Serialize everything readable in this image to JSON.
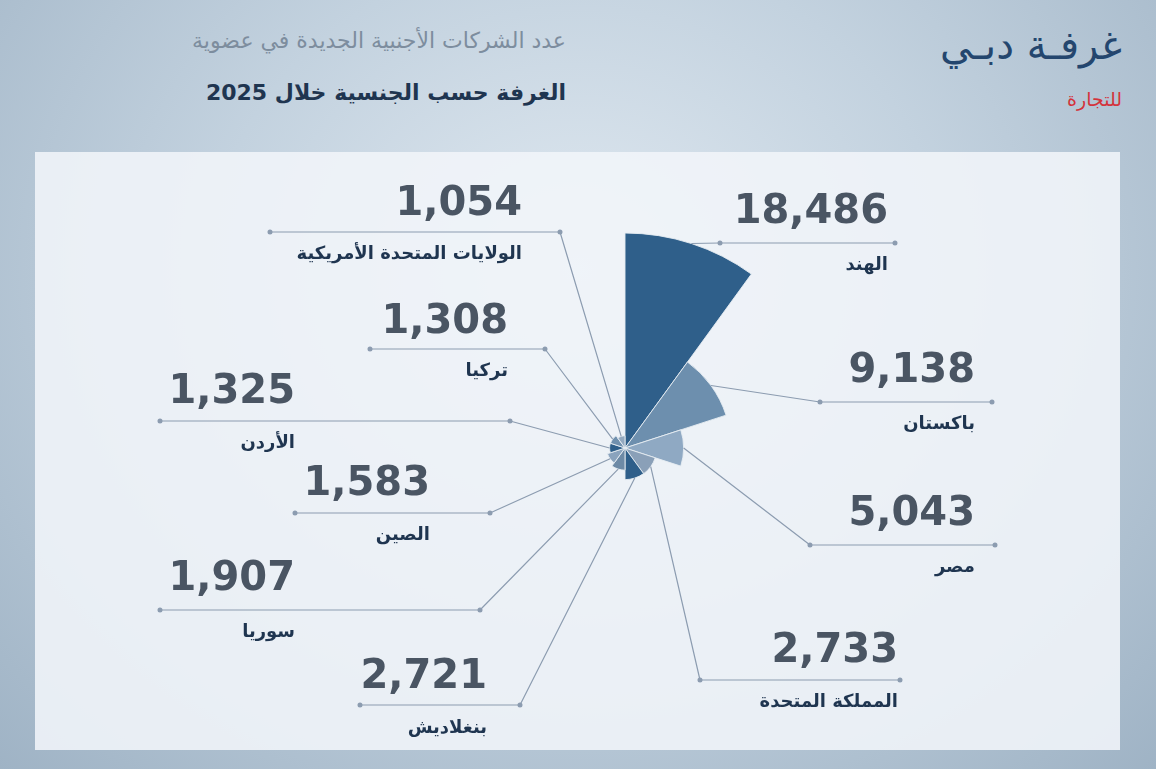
{
  "chart_data": {
    "type": "polarArea",
    "title": "عدد الشركات الأجنبية الجديدة في عضوية",
    "subtitle": "الغرفة حسب الجنسية خلال 2025",
    "logo": "غرفـة دبـي",
    "logo_tagline": "للتجارة",
    "categories": [
      "الهند",
      "باكستان",
      "مصر",
      "المملكة المتحدة",
      "بنغلاديش",
      "سوريا",
      "الصين",
      "الأردن",
      "تركيا",
      "الولايات المتحدة الأمريكية"
    ],
    "values": [
      18486,
      9138,
      5043,
      2733,
      2721,
      1907,
      1583,
      1325,
      1308,
      1054
    ],
    "value_labels": [
      "18,486",
      "9,138",
      "5,043",
      "2,733",
      "2,721",
      "1,907",
      "1,583",
      "1,325",
      "1,308",
      "1,054"
    ],
    "colors": [
      "#2f5f8a",
      "#6d8fae",
      "#8fa9c3",
      "#8aa0b8",
      "#2f5f8a",
      "#6d8aa6",
      "#8aa3bd",
      "#2f5f8a",
      "#7090ae",
      "#93a9c0"
    ],
    "data_labels": true,
    "tick_labels": false,
    "grid": false
  }
}
